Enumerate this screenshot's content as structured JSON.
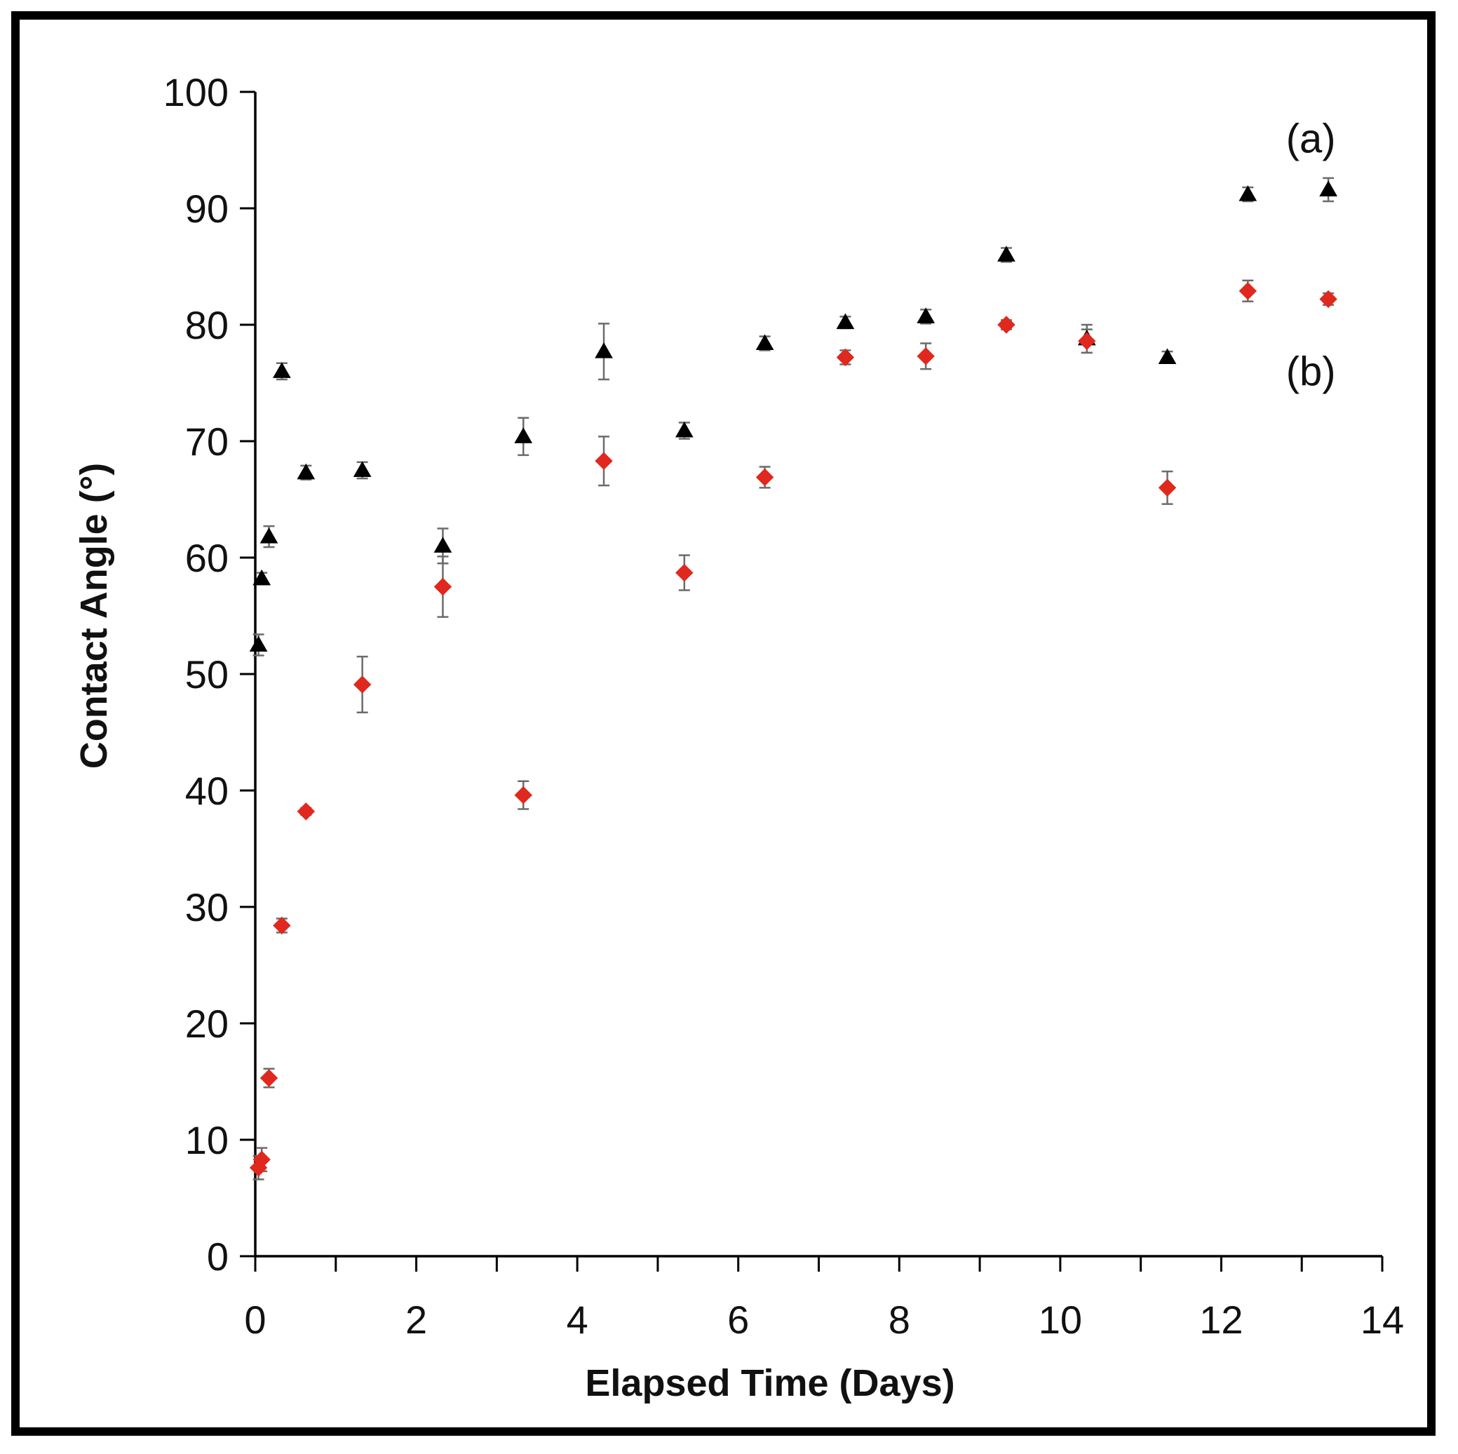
{
  "chart_data": {
    "type": "scatter",
    "title": "",
    "xlabel": "Elapsed Time (Days)",
    "ylabel": "Contact Angle (°)",
    "xlim": [
      0,
      14
    ],
    "ylim": [
      0,
      100
    ],
    "xticks": [
      0,
      2,
      4,
      6,
      8,
      10,
      12,
      14
    ],
    "yticks": [
      0,
      10,
      20,
      30,
      40,
      50,
      60,
      70,
      80,
      90,
      100
    ],
    "grid": false,
    "annotations": [
      {
        "label": "(a)",
        "x": 13.2,
        "y": 96
      },
      {
        "label": "(b)",
        "x": 13.2,
        "y": 76
      }
    ],
    "series": [
      {
        "name": "(a)",
        "marker": "triangle",
        "color": "#000000",
        "points": [
          {
            "x": 0.04,
            "y": 52.5,
            "err": 0.9
          },
          {
            "x": 0.08,
            "y": 58.2,
            "err": 0.5
          },
          {
            "x": 0.17,
            "y": 61.8,
            "err": 0.9
          },
          {
            "x": 0.33,
            "y": 76.0,
            "err": 0.7
          },
          {
            "x": 0.63,
            "y": 67.3,
            "err": 0.6
          },
          {
            "x": 1.33,
            "y": 67.5,
            "err": 0.7
          },
          {
            "x": 2.33,
            "y": 61.0,
            "err": 1.5
          },
          {
            "x": 3.33,
            "y": 70.4,
            "err": 1.6
          },
          {
            "x": 4.33,
            "y": 77.7,
            "err": 2.4
          },
          {
            "x": 5.33,
            "y": 70.9,
            "err": 0.7
          },
          {
            "x": 6.33,
            "y": 78.4,
            "err": 0.6
          },
          {
            "x": 7.33,
            "y": 80.2,
            "err": 0.5
          },
          {
            "x": 8.33,
            "y": 80.7,
            "err": 0.6
          },
          {
            "x": 9.33,
            "y": 86.0,
            "err": 0.6
          },
          {
            "x": 10.33,
            "y": 78.8,
            "err": 1.2
          },
          {
            "x": 11.33,
            "y": 77.2,
            "err": 0.5
          },
          {
            "x": 12.33,
            "y": 91.2,
            "err": 0.6
          },
          {
            "x": 13.33,
            "y": 91.6,
            "err": 1.0
          }
        ]
      },
      {
        "name": "(b)",
        "marker": "diamond",
        "color": "#e0281f",
        "points": [
          {
            "x": 0.04,
            "y": 7.6,
            "err": 1.0
          },
          {
            "x": 0.08,
            "y": 8.3,
            "err": 1.0
          },
          {
            "x": 0.17,
            "y": 15.3,
            "err": 0.8
          },
          {
            "x": 0.33,
            "y": 28.4,
            "err": 0.6
          },
          {
            "x": 0.63,
            "y": 38.2,
            "err": 0.3
          },
          {
            "x": 1.33,
            "y": 49.1,
            "err": 2.4
          },
          {
            "x": 2.33,
            "y": 57.5,
            "err": 2.6
          },
          {
            "x": 3.33,
            "y": 39.6,
            "err": 1.2
          },
          {
            "x": 4.33,
            "y": 68.3,
            "err": 2.1
          },
          {
            "x": 5.33,
            "y": 58.7,
            "err": 1.5
          },
          {
            "x": 6.33,
            "y": 66.9,
            "err": 0.9
          },
          {
            "x": 7.33,
            "y": 77.2,
            "err": 0.6
          },
          {
            "x": 8.33,
            "y": 77.3,
            "err": 1.1
          },
          {
            "x": 9.33,
            "y": 80.0,
            "err": 0.4
          },
          {
            "x": 10.33,
            "y": 78.6,
            "err": 1.0
          },
          {
            "x": 11.33,
            "y": 66.0,
            "err": 1.4
          },
          {
            "x": 12.33,
            "y": 82.9,
            "err": 0.9
          },
          {
            "x": 13.33,
            "y": 82.2,
            "err": 0.5
          }
        ]
      }
    ]
  }
}
